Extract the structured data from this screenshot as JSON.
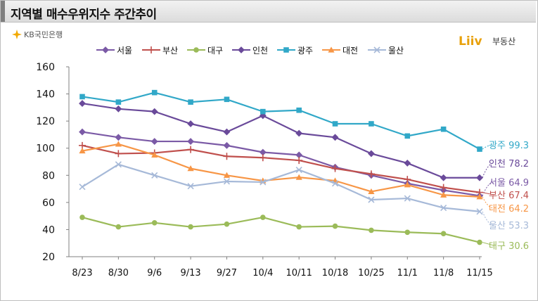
{
  "title": "지역별 매수우위지수 주간추이",
  "source_left": "KB국민은행",
  "source_right_logo": "Liiv",
  "source_right": "부동산",
  "chart_data": {
    "type": "line",
    "title": "지역별 매수우위지수 주간추이",
    "xlabel": "",
    "ylabel": "",
    "categories": [
      "8/23",
      "8/30",
      "9/6",
      "9/13",
      "9/27",
      "10/4",
      "10/11",
      "10/18",
      "10/25",
      "11/1",
      "11/8",
      "11/15"
    ],
    "y_ticks": [
      "20",
      "40",
      "60",
      "80",
      "100",
      "120",
      "140",
      "160"
    ],
    "ylim": [
      20,
      160
    ],
    "grid": false,
    "legend_position": "top",
    "series": [
      {
        "name": "서울",
        "color": "#7B5AA6",
        "marker": "diamond",
        "values": [
          112,
          108,
          105,
          105,
          102,
          97,
          95,
          86,
          80,
          74,
          69,
          64.9
        ],
        "end_label": {
          "name": "서울",
          "value": "64.9"
        }
      },
      {
        "name": "부산",
        "color": "#C0504D",
        "marker": "plus",
        "values": [
          102,
          96,
          96.5,
          99,
          94,
          93,
          91,
          85,
          81,
          77,
          71,
          67.4
        ],
        "end_label": {
          "name": "부산",
          "value": "67.4"
        }
      },
      {
        "name": "대구",
        "color": "#9BBB59",
        "marker": "circle",
        "values": [
          49,
          42,
          45,
          42,
          44,
          49,
          42,
          42.5,
          39.5,
          38,
          37,
          30.6
        ],
        "end_label": {
          "name": "대구",
          "value": "30.6"
        }
      },
      {
        "name": "인천",
        "color": "#6A4A9A",
        "marker": "diamond",
        "values": [
          133,
          129,
          127,
          118,
          112,
          124,
          111,
          108,
          96,
          89,
          78.2,
          78.2
        ],
        "end_label": {
          "name": "인천",
          "value": "78.2"
        }
      },
      {
        "name": "광주",
        "color": "#31A8C8",
        "marker": "square",
        "values": [
          138,
          134,
          141,
          134,
          136,
          127,
          128,
          118,
          118,
          109,
          114,
          99.3
        ],
        "end_label": {
          "name": "광주",
          "value": "99.3"
        }
      },
      {
        "name": "대전",
        "color": "#F79646",
        "marker": "triangle",
        "values": [
          98,
          103,
          95,
          85,
          80,
          76,
          78.5,
          76,
          68,
          73,
          65.5,
          64.2
        ],
        "end_label": {
          "name": "대전",
          "value": "64.2"
        }
      },
      {
        "name": "울산",
        "color": "#A6B9D8",
        "marker": "x",
        "values": [
          71.5,
          88,
          80,
          72,
          75.5,
          75,
          84,
          74,
          62,
          63,
          56,
          53.3
        ],
        "end_label": {
          "name": "울산",
          "value": "53.3"
        }
      }
    ]
  }
}
